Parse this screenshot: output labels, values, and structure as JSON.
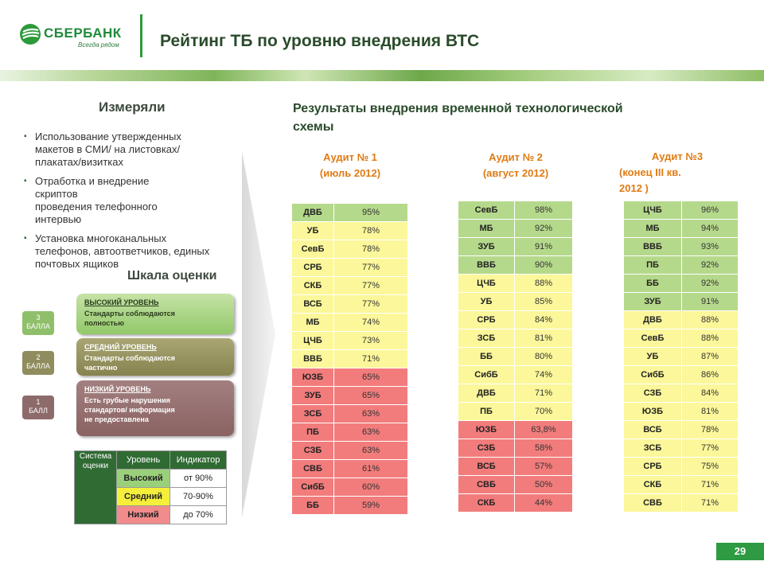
{
  "header": {
    "brand": "СБЕРБАНК",
    "slogan": "Всегда рядом",
    "title": "Рейтинг ТБ по уровню внедрения ВТС"
  },
  "left": {
    "measured_heading": "Измеряли",
    "bullets": [
      {
        "lines": [
          "Использование утвержденных",
          "макетов в СМИ/ на листовках/",
          "плакатах/визитках"
        ]
      },
      {
        "lines": [
          "Отработка и внедрение",
          "скриптов",
          "проведения телефонного",
          "интервью"
        ]
      },
      {
        "lines": [
          "Установка многоканальных",
          "телефонов, автоответчиков, единых",
          "почтовых ящиков"
        ]
      }
    ],
    "scale_heading": "Шкала оценки",
    "levels": [
      {
        "score": "3",
        "score_label": "БАЛЛА",
        "heading": "ВЫСОКИЙ УРОВЕНЬ",
        "lines": [
          "Стандарты соблюдаются",
          "полностью"
        ]
      },
      {
        "score": "2",
        "score_label": "БАЛЛА",
        "heading": "СРЕДНИЙ УРОВЕНЬ",
        "lines": [
          "Стандарты соблюдаются",
          "частично"
        ]
      },
      {
        "score": "1",
        "score_label": "БАЛЛ",
        "heading": "НИЗКИЙ УРОВЕНЬ",
        "lines": [
          "Есть грубые нарушения",
          "стандартов/ информация",
          "не предоставлена"
        ]
      }
    ],
    "legend": {
      "system_label": [
        "Система",
        "оценки"
      ],
      "col_level": "Уровень",
      "col_indicator": "Индикатор",
      "rows": [
        {
          "level": "Высокий",
          "indicator": "от 90%"
        },
        {
          "level": "Средний",
          "indicator": "70-90%"
        },
        {
          "level": "Низкий",
          "indicator": "до 70%"
        }
      ]
    }
  },
  "results_title": [
    "Результаты внедрения временной технологической",
    "схемы"
  ],
  "audits": [
    {
      "heading": [
        "Аудит № 1",
        "(июль 2012)"
      ],
      "rows": [
        {
          "name": "ДВБ",
          "value": "95%"
        },
        {
          "name": "УБ",
          "value": "78%"
        },
        {
          "name": "СевБ",
          "value": "78%"
        },
        {
          "name": "СРБ",
          "value": "77%"
        },
        {
          "name": "СКБ",
          "value": "77%"
        },
        {
          "name": "ВСБ",
          "value": "77%"
        },
        {
          "name": "МБ",
          "value": "74%"
        },
        {
          "name": "ЦЧБ",
          "value": "73%"
        },
        {
          "name": "ВВБ",
          "value": "71%"
        },
        {
          "name": "ЮЗБ",
          "value": "65%"
        },
        {
          "name": "ЗУБ",
          "value": "65%"
        },
        {
          "name": "ЗСБ",
          "value": "63%"
        },
        {
          "name": "ПБ",
          "value": "63%"
        },
        {
          "name": "СЗБ",
          "value": "63%"
        },
        {
          "name": "СВБ",
          "value": "61%"
        },
        {
          "name": "СибБ",
          "value": "60%"
        },
        {
          "name": "ББ",
          "value": "59%"
        }
      ]
    },
    {
      "heading": [
        "Аудит № 2",
        "(август 2012)"
      ],
      "rows": [
        {
          "name": "СевБ",
          "value": "98%"
        },
        {
          "name": "МБ",
          "value": "92%"
        },
        {
          "name": "ЗУБ",
          "value": "91%"
        },
        {
          "name": "ВВБ",
          "value": "90%"
        },
        {
          "name": "ЦЧБ",
          "value": "88%"
        },
        {
          "name": "УБ",
          "value": "85%"
        },
        {
          "name": "СРБ",
          "value": "84%"
        },
        {
          "name": "ЗСБ",
          "value": "81%"
        },
        {
          "name": "ББ",
          "value": "80%"
        },
        {
          "name": "СибБ",
          "value": "74%"
        },
        {
          "name": "ДВБ",
          "value": "71%"
        },
        {
          "name": "ПБ",
          "value": "70%"
        },
        {
          "name": "ЮЗБ",
          "value": "63,8%"
        },
        {
          "name": "СЗБ",
          "value": "58%"
        },
        {
          "name": "ВСБ",
          "value": "57%"
        },
        {
          "name": "СВБ",
          "value": "50%"
        },
        {
          "name": "СКБ",
          "value": "44%"
        }
      ]
    },
    {
      "heading": [
        "Аудит №3",
        "(конец III кв.",
        "2012 )"
      ],
      "rows": [
        {
          "name": "ЦЧБ",
          "value": "96%"
        },
        {
          "name": "МБ",
          "value": "94%"
        },
        {
          "name": "ВВБ",
          "value": "93%"
        },
        {
          "name": "ПБ",
          "value": "92%"
        },
        {
          "name": "ББ",
          "value": "92%"
        },
        {
          "name": "ЗУБ",
          "value": "91%"
        },
        {
          "name": "ДВБ",
          "value": "88%"
        },
        {
          "name": "СевБ",
          "value": "88%"
        },
        {
          "name": "УБ",
          "value": "87%"
        },
        {
          "name": "СибБ",
          "value": "86%"
        },
        {
          "name": "СЗБ",
          "value": "84%"
        },
        {
          "name": "ЮЗБ",
          "value": "81%"
        },
        {
          "name": "ВСБ",
          "value": "78%"
        },
        {
          "name": "ЗСБ",
          "value": "77%"
        },
        {
          "name": "СРБ",
          "value": "75%"
        },
        {
          "name": "СКБ",
          "value": "71%"
        },
        {
          "name": "СВБ",
          "value": "71%"
        }
      ]
    }
  ],
  "colors": {
    "high": "#b5d98b",
    "mid": "#fbf79a",
    "low": "#f27c7c",
    "brand_green": "#2c9a3a",
    "audit_heading": "#e07b14"
  },
  "page_number": "29"
}
